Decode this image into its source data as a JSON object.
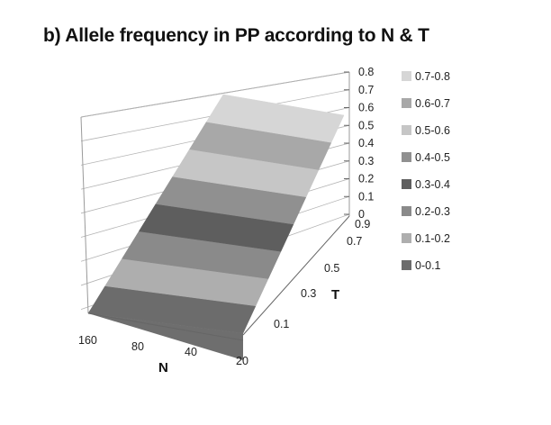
{
  "title": {
    "prefix": "b)",
    "text": "Allele frequency in PP according to N & T"
  },
  "chart_data": {
    "type": "surface",
    "title": "Allele frequency in PP according to N & T",
    "x_axis": {
      "label": "N",
      "ticks": [
        "160",
        "80",
        "40",
        "20"
      ]
    },
    "y_axis": {
      "label": "T",
      "ticks": [
        "0.1",
        "0.3",
        "0.5",
        "0.7",
        "0.9"
      ]
    },
    "z_axis": {
      "label": "",
      "ticks": [
        "0",
        "0.1",
        "0.2",
        "0.3",
        "0.4",
        "0.5",
        "0.6",
        "0.7",
        "0.8"
      ],
      "zlim": [
        0,
        0.8
      ]
    },
    "grid": true,
    "legend_position": "right",
    "legend": [
      {
        "label": "0.7-0.8",
        "color": "#d6d6d6"
      },
      {
        "label": "0.6-0.7",
        "color": "#a8a8a8"
      },
      {
        "label": "0.5-0.6",
        "color": "#c6c6c6"
      },
      {
        "label": "0.4-0.5",
        "color": "#909090"
      },
      {
        "label": "0.3-0.4",
        "color": "#5e5e5e"
      },
      {
        "label": "0.2-0.3",
        "color": "#8a8a8a"
      },
      {
        "label": "0.1-0.2",
        "color": "#aeaeae"
      },
      {
        "label": "0-0.1",
        "color": "#6c6c6c"
      }
    ],
    "surface_values": [
      {
        "T": 0.1,
        "N": [
          "160",
          "80",
          "40",
          "20"
        ],
        "values": [
          0.02,
          0.02,
          0.02,
          0.02
        ]
      },
      {
        "T": 0.3,
        "N": [
          "160",
          "80",
          "40",
          "20"
        ],
        "values": [
          0.22,
          0.22,
          0.22,
          0.22
        ]
      },
      {
        "T": 0.5,
        "N": [
          "160",
          "80",
          "40",
          "20"
        ],
        "values": [
          0.42,
          0.42,
          0.42,
          0.42
        ]
      },
      {
        "T": 0.7,
        "N": [
          "160",
          "80",
          "40",
          "20"
        ],
        "values": [
          0.62,
          0.62,
          0.62,
          0.62
        ]
      },
      {
        "T": 0.9,
        "N": [
          "160",
          "80",
          "40",
          "20"
        ],
        "values": [
          0.72,
          0.72,
          0.72,
          0.72
        ]
      }
    ]
  }
}
